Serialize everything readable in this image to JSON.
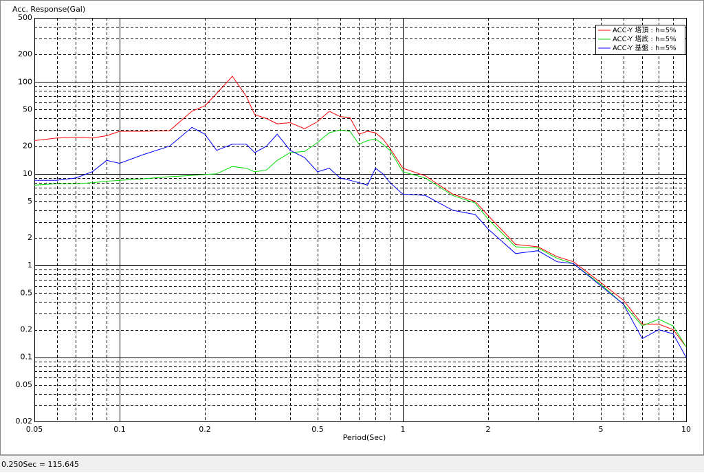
{
  "chart_data": {
    "type": "line",
    "title": "Acc. Response(Gal)",
    "x_label": "Period(Sec)",
    "xscale": "log",
    "yscale": "log",
    "grid": true,
    "legend": "upper right",
    "xlim": [
      0.05,
      10
    ],
    "ylim": [
      0.02,
      500
    ],
    "xticks": [
      0.05,
      0.1,
      0.2,
      0.5,
      1,
      2,
      5,
      10
    ],
    "yticks": [
      0.02,
      0.05,
      0.1,
      0.2,
      0.5,
      1,
      2,
      5,
      10,
      20,
      50,
      100,
      200,
      500
    ],
    "x": [
      0.05,
      0.06,
      0.07,
      0.08,
      0.09,
      0.1,
      0.12,
      0.15,
      0.18,
      0.2,
      0.22,
      0.25,
      0.28,
      0.3,
      0.33,
      0.36,
      0.4,
      0.45,
      0.5,
      0.55,
      0.6,
      0.65,
      0.7,
      0.75,
      0.8,
      0.85,
      0.9,
      1,
      1.2,
      1.5,
      1.8,
      2,
      2.5,
      3,
      3.5,
      4,
      5,
      6,
      7,
      8,
      9,
      10
    ],
    "series": [
      {
        "name": "ACC-Y 塔頂 : h=5%",
        "color": "#ff0000",
        "values": [
          23,
          24.5,
          25,
          24.5,
          26,
          29,
          29,
          29.5,
          48,
          55,
          75,
          115.6,
          70,
          44,
          40,
          35,
          36,
          31,
          37,
          48,
          42,
          41,
          27,
          29,
          28,
          24,
          19,
          11.5,
          9.5,
          6,
          5,
          3.5,
          1.7,
          1.6,
          1.25,
          1.1,
          0.65,
          0.42,
          0.23,
          0.23,
          0.2,
          0.13
        ]
      },
      {
        "name": "ACC-Y 塔底 : h=5%",
        "color": "#00dd00",
        "values": [
          7.5,
          7.8,
          7.8,
          8,
          8.3,
          8.5,
          8.8,
          9.3,
          9.6,
          9.8,
          10,
          12,
          11.5,
          10.5,
          11,
          14,
          17,
          17.5,
          22,
          28,
          30,
          29,
          21,
          23,
          24,
          21,
          18,
          10.5,
          9,
          5.8,
          4.8,
          3.2,
          1.6,
          1.55,
          1.2,
          1.05,
          0.62,
          0.38,
          0.22,
          0.26,
          0.22,
          0.13
        ]
      },
      {
        "name": "ACC-Y 基盤 : h=5%",
        "color": "#0000ff",
        "values": [
          8.5,
          8.5,
          9,
          10.5,
          14,
          13,
          16,
          20,
          32,
          27,
          18,
          21,
          21,
          17,
          20,
          27,
          18,
          15,
          10.5,
          11.5,
          9,
          8.5,
          8,
          7.5,
          11.5,
          10,
          8,
          6,
          5.8,
          4,
          3.6,
          2.5,
          1.35,
          1.45,
          1.1,
          1.05,
          0.6,
          0.38,
          0.16,
          0.2,
          0.18,
          0.1
        ]
      }
    ]
  },
  "status_bar": {
    "text": "0.250Sec = 115.645"
  }
}
